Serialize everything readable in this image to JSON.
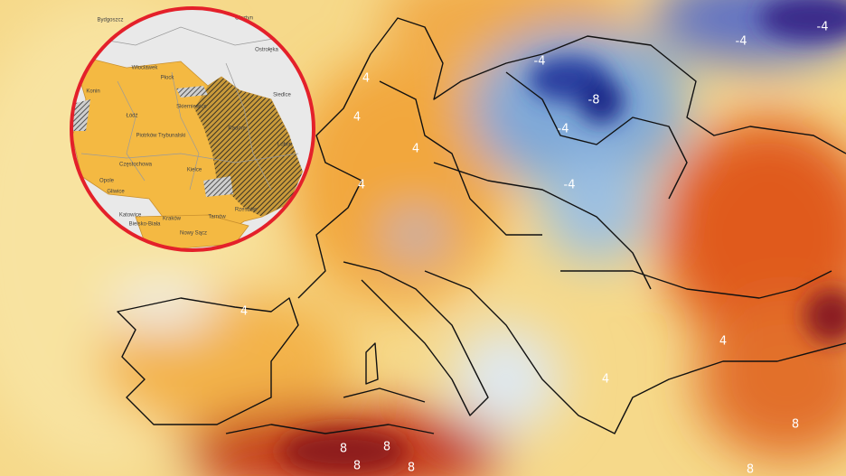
{
  "map": {
    "contour_labels": [
      "-4",
      "-4",
      "-8",
      "-4",
      "-4",
      "-4",
      "4",
      "4",
      "4",
      "4",
      "4",
      "4",
      "4",
      "8",
      "8",
      "8",
      "8",
      "8",
      "8"
    ]
  },
  "inset": {
    "places": [
      "Bydgoszcz",
      "Włocławek",
      "Płock",
      "Konin",
      "Łódź",
      "Skierniewice",
      "Piotrków Trybunalski",
      "Radom",
      "Częstochowa",
      "Kielce",
      "Opole",
      "Gliwice",
      "Katowice",
      "Kraków",
      "Tarnów",
      "Rzeszów",
      "Bielsko-Biała",
      "Nowy Sącz",
      "Olsztyn",
      "Ostrołęka",
      "Siedlce",
      "Lublin"
    ]
  }
}
